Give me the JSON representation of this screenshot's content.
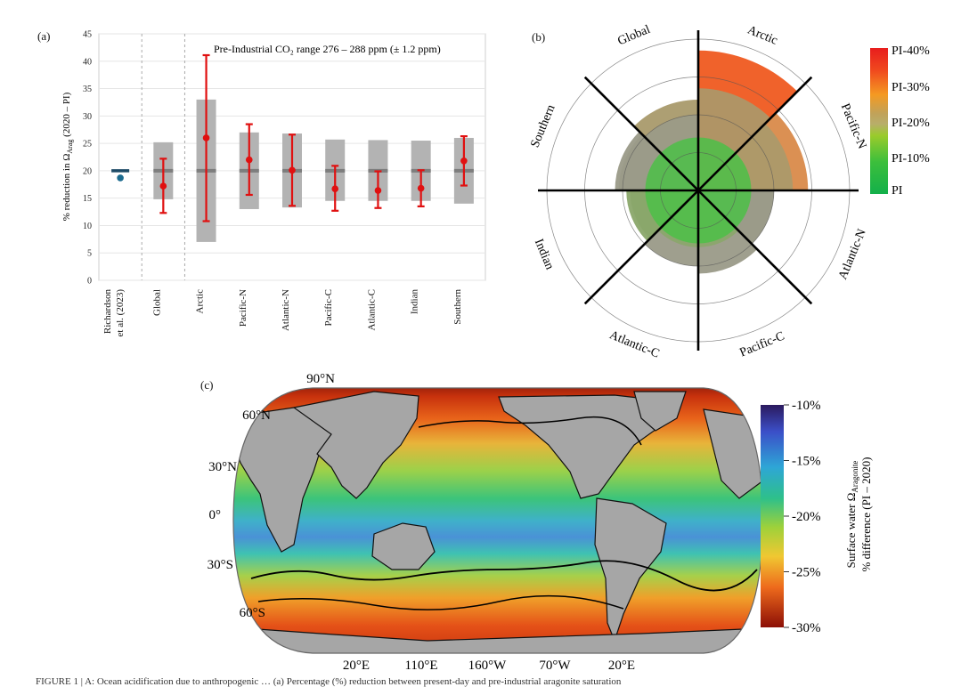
{
  "panels": {
    "a_label": "(a)",
    "b_label": "(b)",
    "c_label": "(c)"
  },
  "colors": {
    "range_box": "#b3b3b3",
    "median_line": "#7d7d7d",
    "error_bar": "#e01010",
    "richardson": "#1d4a66",
    "land": "#a6a6a6"
  },
  "chart_data": [
    {
      "panel": "a",
      "type": "bar",
      "title": "",
      "annotation": "Pre-Industrial CO₂ range 276 – 288 ppm (± 1.2 ppm)",
      "ylabel": "% reduction in Ω",
      "ylabel_sub": "Arag",
      "ylabel_suffix": " (2020 – PI)",
      "ylim": [
        0,
        45
      ],
      "yticks": [
        0,
        5,
        10,
        15,
        20,
        25,
        30,
        35,
        40,
        45
      ],
      "grid": true,
      "categories": [
        "Richardson et al. (2023)",
        "Global",
        "Arctic",
        "Pacific-N",
        "Atlantic-N",
        "Pacific-C",
        "Atlantic-C",
        "Indian",
        "Southern"
      ],
      "range_low": [
        null,
        14.8,
        7.0,
        13.0,
        13.3,
        14.5,
        14.5,
        14.5,
        14.0
      ],
      "range_high": [
        null,
        25.2,
        33.0,
        27.0,
        26.8,
        25.7,
        25.6,
        25.5,
        26.0
      ],
      "median": [
        20.0,
        20.0,
        20.0,
        20.0,
        20.0,
        20.0,
        20.0,
        20.0,
        20.0
      ],
      "mean": [
        18.7,
        17.2,
        26.0,
        22.0,
        20.1,
        16.7,
        16.4,
        16.8,
        21.8
      ],
      "err_low": [
        null,
        12.3,
        10.8,
        15.6,
        13.6,
        12.7,
        13.2,
        13.5,
        17.3
      ],
      "err_high": [
        null,
        22.2,
        41.1,
        28.5,
        26.6,
        20.9,
        19.9,
        20.1,
        26.3
      ]
    },
    {
      "panel": "b",
      "type": "pie",
      "title": "",
      "sectors": [
        "Arctic",
        "Pacific-N",
        "Atlantic-N",
        "Pacific-C",
        "Atlantic-C",
        "Indian",
        "Southern",
        "Global"
      ],
      "outer_value": [
        37,
        29,
        20,
        22,
        20,
        19,
        22,
        24
      ],
      "inner_value": [
        27,
        25,
        20,
        15,
        15,
        18,
        21,
        20
      ],
      "rings": [
        10,
        20,
        30,
        40
      ],
      "scale_ticks": [
        "PI-40%",
        "PI-30%",
        "PI-20%",
        "PI-10%",
        "PI"
      ]
    },
    {
      "panel": "c",
      "type": "heatmap",
      "title": "",
      "lat_labels": [
        "90°N",
        "60°N",
        "30°N",
        "0°",
        "30°S",
        "60°S"
      ],
      "lon_labels": [
        "20°E",
        "110°E",
        "160°W",
        "70°W",
        "20°E"
      ],
      "colorbar_label_line1": "Surface water Ω",
      "colorbar_label_sub": "Aragonite",
      "colorbar_label_line2": "% difference (PI – 2020)",
      "colorbar_ticks": [
        "-10%",
        "-15%",
        "-20%",
        "-25%",
        "-30%"
      ],
      "colorbar_range": [
        -30,
        -10
      ]
    }
  ],
  "caption": "FIGURE 1 | A: Ocean acidification due to anthropogenic … (a) Percentage (%) reduction between present-day and pre-industrial aragonite saturation"
}
